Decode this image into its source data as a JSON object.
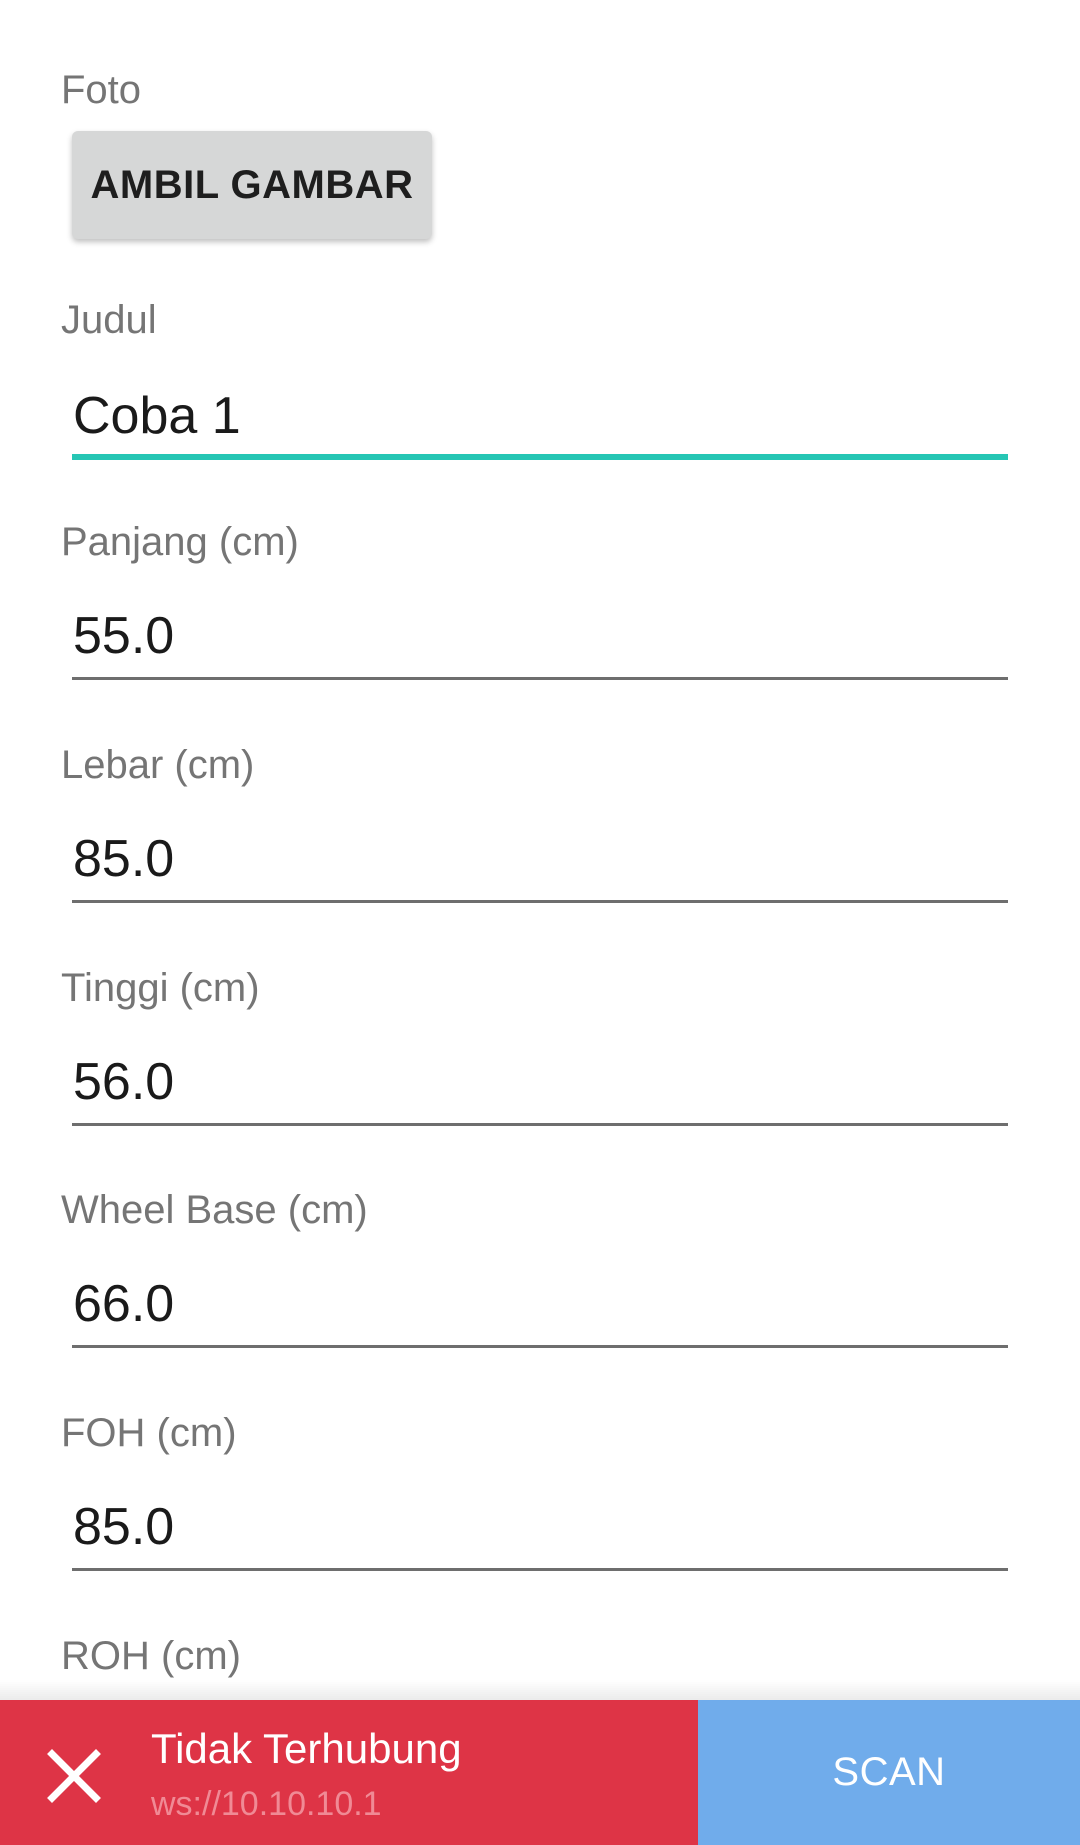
{
  "form": {
    "photo": {
      "label": "Foto",
      "button_label": "AMBIL GAMBAR"
    },
    "fields": [
      {
        "label": "Judul",
        "value": "Coba 1"
      },
      {
        "label": "Panjang (cm)",
        "value": "55.0"
      },
      {
        "label": "Lebar (cm)",
        "value": "85.0"
      },
      {
        "label": "Tinggi (cm)",
        "value": "56.0"
      },
      {
        "label": "Wheel Base (cm)",
        "value": "66.0"
      },
      {
        "label": "FOH (cm)",
        "value": "85.0"
      },
      {
        "label": "ROH (cm)",
        "value": ""
      }
    ]
  },
  "connection": {
    "icon": "close-icon",
    "status": "Tidak Terhubung",
    "address": "ws://10.10.10.1",
    "status_color": "#de3446"
  },
  "scan": {
    "label": "SCAN",
    "color": "#70aceb"
  },
  "accent_color": "#26c6b4"
}
